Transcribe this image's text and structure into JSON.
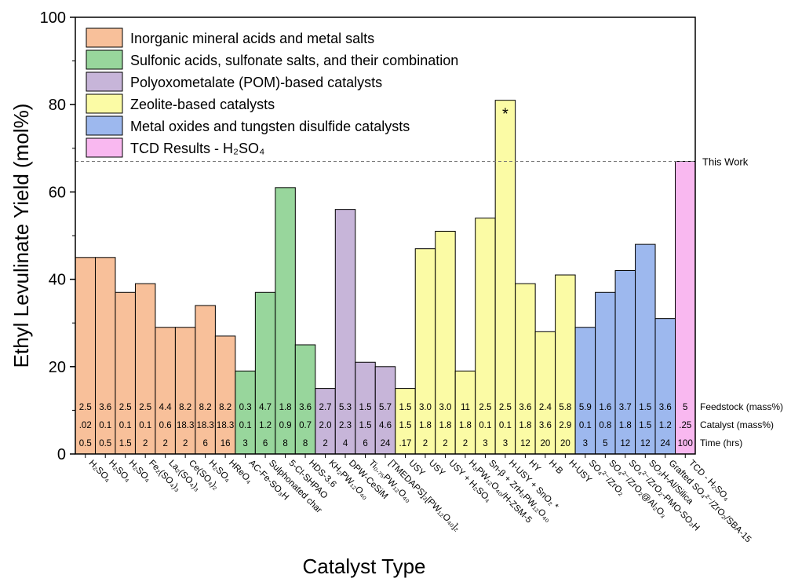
{
  "chart_data": {
    "type": "bar",
    "ylabel": "Ethyl Levulinate Yield (mol%)",
    "xlabel": "Catalyst Type",
    "ylim": [
      0,
      100
    ],
    "yticks": [
      0,
      20,
      40,
      60,
      80,
      100
    ],
    "legend_placement": "top-left",
    "groups": [
      {
        "name": "Inorganic mineral acids and metal salts",
        "color": "#F8C09A"
      },
      {
        "name": "Sulfonic acids, sulfonate salts, and their combination",
        "color": "#98D69C"
      },
      {
        "name": "Polyoxometalate (POM)-based catalysts",
        "color": "#C7B5D9"
      },
      {
        "name": "Zeolite-based catalysts",
        "color": "#FBFBA5"
      },
      {
        "name": "Metal oxides and tungsten disulfide catalysts",
        "color": "#9DB8EE"
      },
      {
        "name": "TCD Results - H₂SO₄",
        "color": "#F9B8F0"
      }
    ],
    "categories": [
      "H₂SO₄",
      "H₂SO₄",
      "H₂SO₄",
      "Fe₂(SO₄)₃",
      "La₂(SO₄)₃",
      "Ce(SO₄)₂",
      "H₂SO₄",
      "HReO₄",
      "AC-Fe-SO₃H",
      "Sulphonated char",
      "5-Cl-SHPAO",
      "HDS-3.6",
      "KH₂PW₁₂O₄₀",
      "DPW-CeSiM",
      "Ti₀.₇₅PW₁₂O₄₀",
      "[TMEDAPS]₃[PW₁₂O₄₀]₂",
      "USY",
      "USY",
      "USY + H₂SO₄",
      "H₃PW₁₂O₄₀/H-ZSM-5",
      "Sn-β + ZrH₂PW₁₂O₄₀",
      "H-USY + SnO₂ *",
      "HY",
      "H-B",
      "H-USY",
      "SO₄²⁻/ZrO₂",
      "SO₄²⁻/ZrO₂@Al₂O₃",
      "SO₄²⁻/ZrO₂-PMO-SO₃H",
      "SO₃H-Al/Silica",
      "Grafted SO₄²⁻/ZrO₂/SBA-15",
      "TCD - H₂SO₄"
    ],
    "group_index": [
      0,
      0,
      0,
      0,
      0,
      0,
      0,
      0,
      1,
      1,
      1,
      1,
      2,
      2,
      2,
      2,
      3,
      3,
      3,
      3,
      3,
      3,
      3,
      3,
      3,
      4,
      4,
      4,
      4,
      4,
      5
    ],
    "values": [
      45,
      45,
      37,
      39,
      29,
      29,
      34,
      27,
      19,
      37,
      61,
      25,
      15,
      56,
      21,
      20,
      15,
      47,
      51,
      19,
      54,
      81,
      39,
      28,
      41,
      29,
      37,
      42,
      48,
      31,
      67
    ],
    "feedstock": [
      "2.5",
      "3.6",
      "2.5",
      "2.5",
      "4.4",
      "8.2",
      "8.2",
      "8.2",
      "0.3",
      "4.7",
      "1.8",
      "3.6",
      "2.7",
      "5.3",
      "1.5",
      "5.7",
      "1.5",
      "3.0",
      "3.0",
      "11",
      "2.5",
      "2.5",
      "3.6",
      "2.4",
      "5.8",
      "5.9",
      "1.6",
      "3.7",
      "1.5",
      "3.6",
      "5"
    ],
    "catalyst": [
      ".02",
      "0.1",
      "0.1",
      "0.1",
      "0.6",
      "18.3",
      "18.3",
      "18.3",
      "0.1",
      "1.2",
      "0.9",
      "0.7",
      "2.0",
      "2.3",
      "1.5",
      "4.6",
      "1.5",
      "1.8",
      "1.8",
      "1.8",
      "0.1",
      "0.1",
      "1.8",
      "3.6",
      "2.9",
      "0.1",
      "0.8",
      "1.8",
      "1.5",
      "1.2",
      ".25"
    ],
    "time": [
      "0.5",
      "0.5",
      "1.5",
      "2",
      "2",
      "2",
      "6",
      "16",
      "3",
      "6",
      "8",
      "8",
      "2",
      "4",
      "6",
      "24",
      ".17",
      "2",
      "2",
      "2",
      "3",
      "3",
      "12",
      "20",
      "20",
      "3",
      "5",
      "12",
      "12",
      "24",
      "100"
    ],
    "row_labels": [
      "Feedstock (mass%)",
      "Catalyst (mass%)",
      "Time (hrs)"
    ],
    "reference_line": {
      "value": 67,
      "label": "This Work"
    },
    "annotations": [
      {
        "index": 21,
        "text": "*"
      }
    ]
  }
}
